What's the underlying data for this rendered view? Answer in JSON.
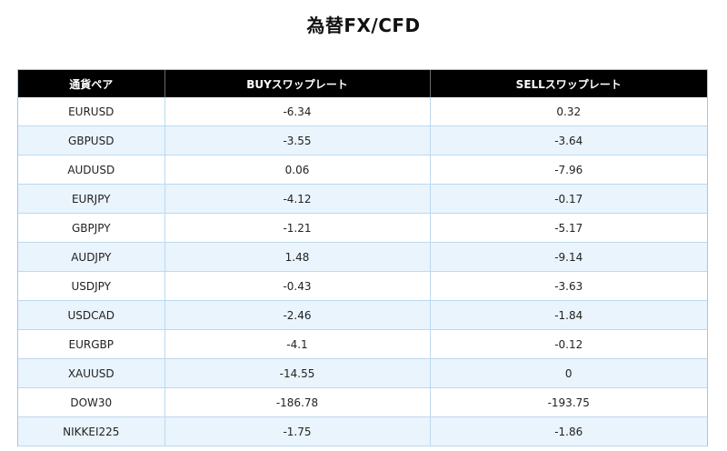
{
  "page": {
    "title": "為替FX/CFD"
  },
  "table": {
    "headers": [
      "通貨ペア",
      "BUYスワップレート",
      "SELLスワップレート"
    ],
    "rows": [
      [
        "EURUSD",
        "-6.34",
        "0.32"
      ],
      [
        "GBPUSD",
        "-3.55",
        "-3.64"
      ],
      [
        "AUDUSD",
        "0.06",
        "-7.96"
      ],
      [
        "EURJPY",
        "-4.12",
        "-0.17"
      ],
      [
        "GBPJPY",
        "-1.21",
        "-5.17"
      ],
      [
        "AUDJPY",
        "1.48",
        "-9.14"
      ],
      [
        "USDJPY",
        "-0.43",
        "-3.63"
      ],
      [
        "USDCAD",
        "-2.46",
        "-1.84"
      ],
      [
        "EURGBP",
        "-4.1",
        "-0.12"
      ],
      [
        "XAUUSD",
        "-14.55",
        "0"
      ],
      [
        "DOW30",
        "-186.78",
        "-193.75"
      ],
      [
        "NIKKEI225",
        "-1.75",
        "-1.86"
      ]
    ]
  }
}
